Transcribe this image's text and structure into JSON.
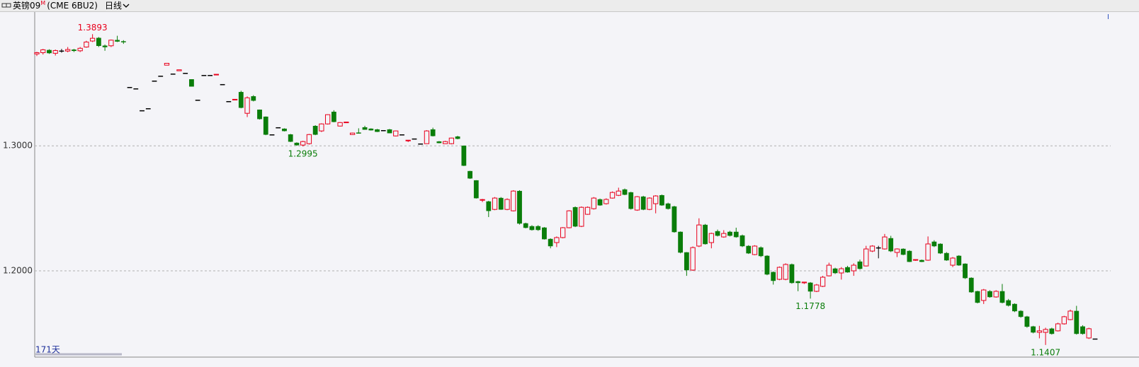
{
  "header": {
    "symbol": "英镑09",
    "flag": "M",
    "code": "(CME 6BU2)",
    "period": "日线"
  },
  "corner_mark": "I",
  "chart_data": {
    "type": "candlestick",
    "span_label": "171天",
    "ylim": [
      1.131,
      1.407
    ],
    "yticks": [
      {
        "value": 1.3,
        "label": "1.3000"
      },
      {
        "value": 1.2,
        "label": "1.2000"
      }
    ],
    "grid": true,
    "up_color": "#e8001c",
    "down_color": "#0a7d0a",
    "annotations": [
      {
        "value": 1.3893,
        "label": "1.3893"
      },
      {
        "value": 1.2995,
        "label": "1.2995"
      },
      {
        "value": 1.1778,
        "label": "1.1778"
      },
      {
        "value": 1.1407,
        "label": "1.1407"
      }
    ],
    "ohlc": [
      [
        1.3735,
        1.3752,
        1.3718,
        1.3745
      ],
      [
        1.3745,
        1.3775,
        1.373,
        1.3768
      ],
      [
        1.3765,
        1.3772,
        1.3735,
        1.3742
      ],
      [
        1.374,
        1.377,
        1.3722,
        1.3762
      ],
      [
        1.376,
        1.3775,
        1.3745,
        1.376
      ],
      [
        1.3758,
        1.379,
        1.3748,
        1.377
      ],
      [
        1.3768,
        1.3775,
        1.375,
        1.376
      ],
      [
        1.376,
        1.379,
        1.375,
        1.378
      ],
      [
        1.379,
        1.384,
        1.3785,
        1.383
      ],
      [
        1.3838,
        1.3893,
        1.383,
        1.386
      ],
      [
        1.3862,
        1.387,
        1.379,
        1.38
      ],
      [
        1.38,
        1.381,
        1.376,
        1.379
      ],
      [
        1.38,
        1.385,
        1.379,
        1.3845
      ],
      [
        1.3845,
        1.388,
        1.383,
        1.3835
      ],
      [
        1.3835,
        1.3845,
        1.3815,
        1.383
      ],
      [
        1.3469,
        1.3469,
        1.3469,
        1.3469
      ],
      [
        1.3458,
        1.3458,
        1.3458,
        1.3458
      ],
      [
        1.3283,
        1.3283,
        1.3283,
        1.3283
      ],
      [
        1.3299,
        1.3299,
        1.3299,
        1.3299
      ],
      [
        1.352,
        1.352,
        1.352,
        1.352
      ],
      [
        1.3559,
        1.3559,
        1.3559,
        1.3559
      ],
      [
        1.3645,
        1.366,
        1.3645,
        1.366
      ],
      [
        1.3576,
        1.3576,
        1.3576,
        1.3576
      ],
      [
        1.36,
        1.3608,
        1.36,
        1.3608
      ],
      [
        1.3582,
        1.3582,
        1.3582,
        1.3582
      ],
      [
        1.3531,
        1.3531,
        1.3475,
        1.3475
      ],
      [
        1.3367,
        1.3367,
        1.3367,
        1.3367
      ],
      [
        1.3565,
        1.3565,
        1.3565,
        1.3565
      ],
      [
        1.3565,
        1.3565,
        1.3565,
        1.3565
      ],
      [
        1.3568,
        1.3572,
        1.3568,
        1.3572
      ],
      [
        1.3492,
        1.3492,
        1.3492,
        1.3492
      ],
      [
        1.3356,
        1.3356,
        1.3356,
        1.3356
      ],
      [
        1.3367,
        1.3372,
        1.3367,
        1.3372
      ],
      [
        1.3429,
        1.344,
        1.33,
        1.3305
      ],
      [
        1.326,
        1.3395,
        1.323,
        1.3384
      ],
      [
        1.3395,
        1.3405,
        1.3355,
        1.3362
      ],
      [
        1.3288,
        1.329,
        1.321,
        1.3215
      ],
      [
        1.3232,
        1.3235,
        1.3085,
        1.309
      ],
      [
        1.309,
        1.309,
        1.309,
        1.309
      ],
      [
        1.3147,
        1.3147,
        1.3147,
        1.3147
      ],
      [
        1.3136,
        1.314,
        1.3115,
        1.3119
      ],
      [
        1.309,
        1.3095,
        1.303,
        1.3034
      ],
      [
        1.3023,
        1.3028,
        1.3,
        1.3006
      ],
      [
        1.3006,
        1.304,
        1.2995,
        1.3034
      ],
      [
        1.3017,
        1.3095,
        1.301,
        1.309
      ],
      [
        1.3158,
        1.3165,
        1.3085,
        1.309
      ],
      [
        1.3119,
        1.318,
        1.311,
        1.3175
      ],
      [
        1.3175,
        1.3252,
        1.317,
        1.3249
      ],
      [
        1.3271,
        1.3285,
        1.3188,
        1.3192
      ],
      [
        1.3158,
        1.319,
        1.3155,
        1.3186
      ],
      [
        1.3186,
        1.319,
        1.3182,
        1.319
      ],
      [
        1.309,
        1.3105,
        1.3088,
        1.3102
      ],
      [
        1.3105,
        1.314,
        1.3098,
        1.31
      ],
      [
        1.3147,
        1.316,
        1.3128,
        1.313
      ],
      [
        1.3136,
        1.314,
        1.3122,
        1.3125
      ],
      [
        1.313,
        1.3135,
        1.311,
        1.3113
      ],
      [
        1.3124,
        1.3124,
        1.3124,
        1.3124
      ],
      [
        1.313,
        1.3135,
        1.31,
        1.3102
      ],
      [
        1.3079,
        1.3122,
        1.3075,
        1.3119
      ],
      [
        1.309,
        1.309,
        1.309,
        1.309
      ],
      [
        1.304,
        1.3045,
        1.303,
        1.3045
      ],
      [
        1.3057,
        1.3057,
        1.3057,
        1.3057
      ],
      [
        1.3017,
        1.3017,
        1.3017,
        1.3017
      ],
      [
        1.3017,
        1.3125,
        1.3015,
        1.3119
      ],
      [
        1.313,
        1.3145,
        1.3075,
        1.3079
      ],
      [
        1.3034,
        1.3038,
        1.302,
        1.3023
      ],
      [
        1.3017,
        1.304,
        1.3015,
        1.3034
      ],
      [
        1.3017,
        1.3065,
        1.3012,
        1.3062
      ],
      [
        1.3073,
        1.308,
        1.3052,
        1.3057
      ],
      [
        1.3,
        1.3002,
        1.2838,
        1.2842
      ],
      [
        1.2797,
        1.28,
        1.2735,
        1.274
      ],
      [
        1.2723,
        1.2725,
        1.2578,
        1.2582
      ],
      [
        1.2565,
        1.2575,
        1.255,
        1.257
      ],
      [
        1.2554,
        1.256,
        1.243,
        1.248
      ],
      [
        1.2491,
        1.259,
        1.2485,
        1.2582
      ],
      [
        1.2582,
        1.259,
        1.2488,
        1.2491
      ],
      [
        1.2491,
        1.258,
        1.2485,
        1.2571
      ],
      [
        1.248,
        1.2645,
        1.2475,
        1.2638
      ],
      [
        1.2638,
        1.2645,
        1.237,
        1.2379
      ],
      [
        1.2379,
        1.2385,
        1.234,
        1.2345
      ],
      [
        1.2356,
        1.2365,
        1.2322,
        1.2328
      ],
      [
        1.2356,
        1.2365,
        1.232,
        1.2328
      ],
      [
        1.2345,
        1.235,
        1.225,
        1.2254
      ],
      [
        1.2254,
        1.226,
        1.218,
        1.2198
      ],
      [
        1.2226,
        1.2275,
        1.219,
        1.2266
      ],
      [
        1.2266,
        1.235,
        1.226,
        1.2345
      ],
      [
        1.2345,
        1.2485,
        1.234,
        1.248
      ],
      [
        1.2508,
        1.2515,
        1.235,
        1.2356
      ],
      [
        1.2356,
        1.2515,
        1.235,
        1.2508
      ],
      [
        1.2452,
        1.2515,
        1.2448,
        1.2508
      ],
      [
        1.2497,
        1.259,
        1.249,
        1.2582
      ],
      [
        1.2571,
        1.2578,
        1.252,
        1.2525
      ],
      [
        1.2537,
        1.258,
        1.253,
        1.2571
      ],
      [
        1.2582,
        1.2635,
        1.2578,
        1.2627
      ],
      [
        1.2604,
        1.2665,
        1.2598,
        1.2638
      ],
      [
        1.265,
        1.2658,
        1.2605,
        1.261
      ],
      [
        1.2627,
        1.2632,
        1.249,
        1.2497
      ],
      [
        1.2486,
        1.2598,
        1.248,
        1.2593
      ],
      [
        1.2593,
        1.26,
        1.2485,
        1.2491
      ],
      [
        1.2491,
        1.2588,
        1.2485,
        1.2582
      ],
      [
        1.2537,
        1.2605,
        1.246,
        1.2599
      ],
      [
        1.2604,
        1.261,
        1.252,
        1.2525
      ],
      [
        1.2537,
        1.2545,
        1.249,
        1.2497
      ],
      [
        1.2514,
        1.252,
        1.2305,
        1.2311
      ],
      [
        1.2311,
        1.2315,
        1.214,
        1.2147
      ],
      [
        1.2147,
        1.215,
        1.196,
        1.2006
      ],
      [
        1.2006,
        1.2195,
        1.2,
        1.2186
      ],
      [
        1.2198,
        1.242,
        1.219,
        1.2367
      ],
      [
        1.2367,
        1.2375,
        1.221,
        1.2215
      ],
      [
        1.2226,
        1.2305,
        1.218,
        1.2299
      ],
      [
        1.2316,
        1.233,
        1.2275,
        1.2282
      ],
      [
        1.2271,
        1.2325,
        1.2265,
        1.2299
      ],
      [
        1.2311,
        1.232,
        1.2275,
        1.2282
      ],
      [
        1.2311,
        1.2345,
        1.2265,
        1.2271
      ],
      [
        1.2282,
        1.229,
        1.219,
        1.2198
      ],
      [
        1.2198,
        1.2205,
        1.2135,
        1.2141
      ],
      [
        1.213,
        1.2205,
        1.2125,
        1.2198
      ],
      [
        1.2186,
        1.2195,
        1.211,
        1.2119
      ],
      [
        1.2119,
        1.2125,
        1.1965,
        1.1972
      ],
      [
        1.1989,
        1.1995,
        1.189,
        1.1921
      ],
      [
        1.1932,
        1.2035,
        1.1925,
        1.2028
      ],
      [
        1.1932,
        1.206,
        1.1925,
        1.2051
      ],
      [
        1.2051,
        1.2058,
        1.1897,
        1.1904
      ],
      [
        1.1915,
        1.192,
        1.1837,
        1.1904
      ],
      [
        1.1904,
        1.191,
        1.1895,
        1.191
      ],
      [
        1.1904,
        1.191,
        1.1778,
        1.1836
      ],
      [
        1.1836,
        1.1895,
        1.183,
        1.1887
      ],
      [
        1.1876,
        1.196,
        1.187,
        1.1949
      ],
      [
        1.196,
        1.2065,
        1.1955,
        1.2045
      ],
      [
        1.2017,
        1.2025,
        1.1975,
        1.1983
      ],
      [
        1.1983,
        1.203,
        1.193,
        1.2017
      ],
      [
        1.2028,
        1.204,
        1.1985,
        1.1989
      ],
      [
        1.2,
        1.206,
        1.196,
        1.2045
      ],
      [
        1.2073,
        1.209,
        1.201,
        1.2017
      ],
      [
        1.2039,
        1.22,
        1.2035,
        1.2175
      ],
      [
        1.2158,
        1.2205,
        1.215,
        1.2198
      ],
      [
        1.2186,
        1.22,
        1.21,
        1.2186
      ],
      [
        1.2175,
        1.2295,
        1.217,
        1.2271
      ],
      [
        1.226,
        1.228,
        1.215,
        1.2158
      ],
      [
        1.2147,
        1.218,
        1.211,
        1.2175
      ],
      [
        1.2175,
        1.218,
        1.2125,
        1.213
      ],
      [
        1.2158,
        1.2165,
        1.207,
        1.2073
      ],
      [
        1.2085,
        1.209,
        1.208,
        1.209
      ],
      [
        1.2085,
        1.209,
        1.207,
        1.2073
      ],
      [
        1.2085,
        1.2275,
        1.208,
        1.2215
      ],
      [
        1.2232,
        1.2245,
        1.219,
        1.2198
      ],
      [
        1.2215,
        1.222,
        1.2135,
        1.2141
      ],
      [
        1.2141,
        1.215,
        1.208,
        1.2085
      ],
      [
        1.2045,
        1.211,
        1.203,
        1.2102
      ],
      [
        1.2119,
        1.2125,
        1.204,
        1.2045
      ],
      [
        1.2056,
        1.206,
        1.1935,
        1.1943
      ],
      [
        1.1943,
        1.1948,
        1.1825,
        1.183
      ],
      [
        1.1836,
        1.184,
        1.174,
        1.1746
      ],
      [
        1.1763,
        1.1855,
        1.1735,
        1.1847
      ],
      [
        1.1836,
        1.1845,
        1.1785,
        1.1791
      ],
      [
        1.1791,
        1.1845,
        1.1785,
        1.1836
      ],
      [
        1.1836,
        1.1895,
        1.174,
        1.1746
      ],
      [
        1.1763,
        1.1775,
        1.1715,
        1.1723
      ],
      [
        1.1734,
        1.174,
        1.167,
        1.1678
      ],
      [
        1.1678,
        1.1685,
        1.1625,
        1.1633
      ],
      [
        1.1633,
        1.164,
        1.1545,
        1.1554
      ],
      [
        1.1554,
        1.156,
        1.15,
        1.1508
      ],
      [
        1.1508,
        1.156,
        1.146,
        1.152
      ],
      [
        1.1508,
        1.1545,
        1.1407,
        1.1531
      ],
      [
        1.1537,
        1.1545,
        1.149,
        1.1497
      ],
      [
        1.152,
        1.1585,
        1.1515,
        1.1576
      ],
      [
        1.1576,
        1.164,
        1.157,
        1.1633
      ],
      [
        1.161,
        1.169,
        1.1605,
        1.1678
      ],
      [
        1.1678,
        1.172,
        1.149,
        1.1497
      ],
      [
        1.1554,
        1.1565,
        1.149,
        1.1497
      ],
      [
        1.1463,
        1.1545,
        1.1455,
        1.1537
      ],
      [
        1.1457,
        1.1457,
        1.1457,
        1.1457
      ]
    ]
  }
}
